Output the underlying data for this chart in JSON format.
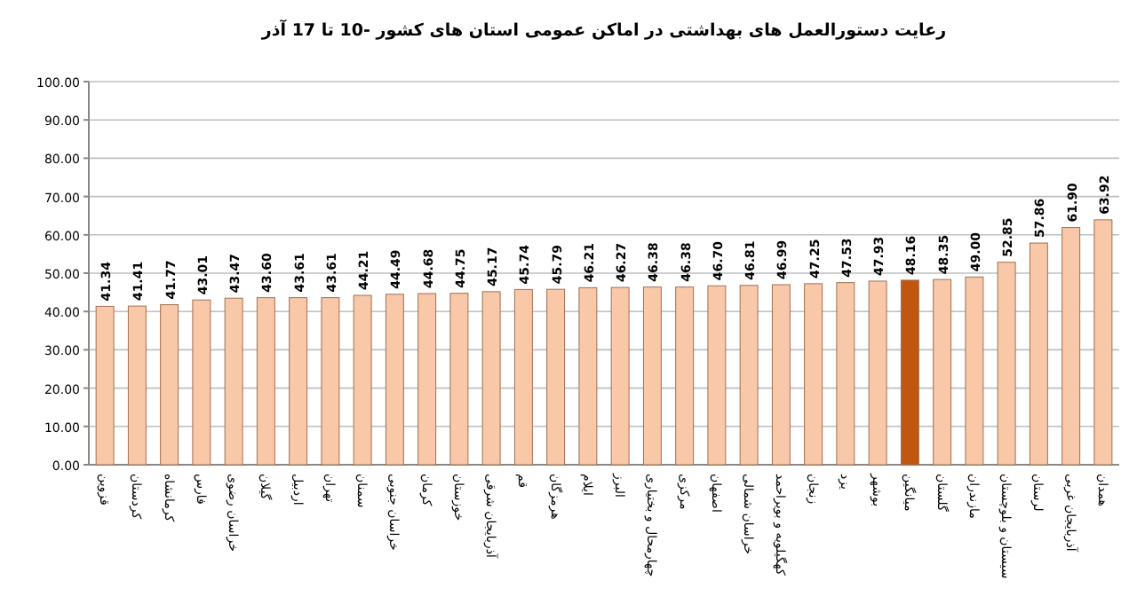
{
  "chart_data": {
    "type": "bar",
    "title": "رعایت دستورالعمل های بهداشتی در اماکن عمومی استان های کشور  -10 تا 17 آذر",
    "categories": [
      "قزوین",
      "کردستان",
      "کرمانشاه",
      "فارس",
      "خراسان رضوی",
      "گیلان",
      "اردبیل",
      "تهران",
      "سمنان",
      "خراسان جنوبی",
      "کرمان",
      "خوزستان",
      "آذربایجان شرقی",
      "قم",
      "هرمزگان",
      "ایلام",
      "البرز",
      "چهارمحال و بختیاری",
      "مرکزی",
      "اصفهان",
      "خراسان شمالی",
      "کهگیلویه و بویراحمد",
      "زنجان",
      "یزد",
      "بوشهر",
      "میانگین",
      "گلستان",
      "مازندران",
      "سیستان و بلوچستان",
      "لرستان",
      "آذربایجان غربی",
      "همدان"
    ],
    "values": [
      41.34,
      41.41,
      41.77,
      43.01,
      43.47,
      43.6,
      43.61,
      43.61,
      44.21,
      44.49,
      44.68,
      44.75,
      45.17,
      45.74,
      45.79,
      46.21,
      46.27,
      46.38,
      46.38,
      46.7,
      46.81,
      46.99,
      47.25,
      47.53,
      47.93,
      48.16,
      48.35,
      49.0,
      52.85,
      57.86,
      61.9,
      63.92
    ],
    "colors": [
      "#f9c8a8",
      "#f9c8a8",
      "#f9c8a8",
      "#f9c8a8",
      "#f9c8a8",
      "#f9c8a8",
      "#f9c8a8",
      "#f9c8a8",
      "#f9c8a8",
      "#f9c8a8",
      "#f9c8a8",
      "#f9c8a8",
      "#f9c8a8",
      "#f9c8a8",
      "#f9c8a8",
      "#f9c8a8",
      "#f9c8a8",
      "#f9c8a8",
      "#f9c8a8",
      "#f9c8a8",
      "#f9c8a8",
      "#f9c8a8",
      "#f9c8a8",
      "#f9c8a8",
      "#f9c8a8",
      "#c0560f",
      "#f9c8a8",
      "#f9c8a8",
      "#f9c8a8",
      "#f9c8a8",
      "#f9c8a8",
      "#f9c8a8"
    ],
    "ylim": [
      0,
      100
    ],
    "yticks": [
      {
        "value": 0,
        "label": "0.00"
      },
      {
        "value": 10,
        "label": "10.00"
      },
      {
        "value": 20,
        "label": "20.00"
      },
      {
        "value": 30,
        "label": "30.00"
      },
      {
        "value": 40,
        "label": "40.00"
      },
      {
        "value": 50,
        "label": "50.00"
      },
      {
        "value": 60,
        "label": "60.00"
      },
      {
        "value": 70,
        "label": "70.00"
      },
      {
        "value": 80,
        "label": "80.00"
      },
      {
        "value": 90,
        "label": "90.00"
      },
      {
        "value": 100,
        "label": "100.00"
      }
    ],
    "value_labels": [
      "41.34",
      "41.41",
      "41.77",
      "43.01",
      "43.47",
      "43.60",
      "43.61",
      "43.61",
      "44.21",
      "44.49",
      "44.68",
      "44.75",
      "45.17",
      "45.74",
      "45.79",
      "46.21",
      "46.27",
      "46.38",
      "46.38",
      "46.70",
      "46.81",
      "46.99",
      "47.25",
      "47.53",
      "47.93",
      "48.16",
      "48.35",
      "49.00",
      "52.85",
      "57.86",
      "61.90",
      "63.92"
    ],
    "grid": "y"
  }
}
